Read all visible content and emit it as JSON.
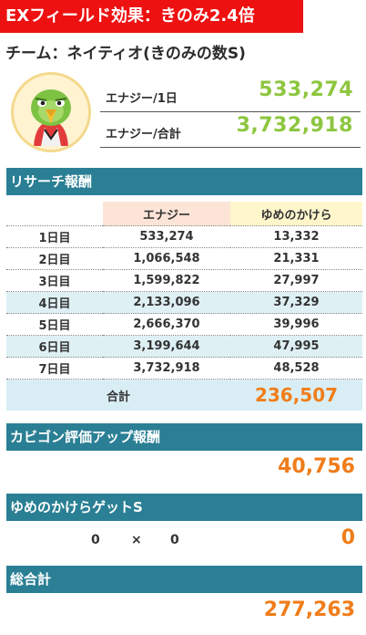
{
  "header": {
    "title": "EXフィールド効果：きのみ2.4倍",
    "team": "チーム：ネイティオ(きのみの数S)"
  },
  "stats": {
    "per_day_label": "エナジー/1日",
    "per_day_value": "533,274",
    "total_label": "エナジー/合計",
    "total_value": "3,732,918"
  },
  "research": {
    "title": "リサーチ報酬",
    "columns": [
      "",
      "エナジー",
      "ゆめのかけら"
    ],
    "rows": [
      {
        "day": "1日目",
        "energy": "533,274",
        "shards": "13,332"
      },
      {
        "day": "2日目",
        "energy": "1,066,548",
        "shards": "21,331"
      },
      {
        "day": "3日目",
        "energy": "1,599,822",
        "shards": "27,997"
      },
      {
        "day": "4日目",
        "energy": "2,133,096",
        "shards": "37,329"
      },
      {
        "day": "5日目",
        "energy": "2,666,370",
        "shards": "39,996"
      },
      {
        "day": "6日目",
        "energy": "3,199,644",
        "shards": "47,995"
      },
      {
        "day": "7日目",
        "energy": "3,732,918",
        "shards": "48,528"
      }
    ],
    "total_label": "合計",
    "total_value": "236,507"
  },
  "snorlax": {
    "title": "カビゴン評価アップ報酬",
    "value": "40,756"
  },
  "getS": {
    "title": "ゆめのかけらゲットS",
    "left": "0",
    "times": "×",
    "right": "0",
    "value": "0"
  },
  "grand": {
    "title": "総合計",
    "value": "277,263"
  },
  "colors": {
    "banner": "#ee1111",
    "section": "#2a7f94",
    "energy_green": "#8dc63f",
    "total_orange": "#f07d1a"
  }
}
